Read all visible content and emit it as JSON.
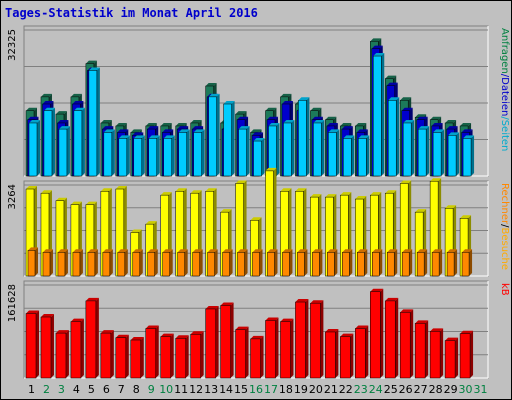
{
  "title": "Tages-Statistik im Monat April 2016",
  "chart_data": {
    "type": "bar",
    "title": "Tages-Statistik im Monat April 2016",
    "categories": [
      "1",
      "2",
      "3",
      "4",
      "5",
      "6",
      "7",
      "8",
      "9",
      "10",
      "11",
      "12",
      "13",
      "14",
      "15",
      "16",
      "17",
      "18",
      "19",
      "20",
      "21",
      "22",
      "23",
      "24",
      "25",
      "26",
      "27",
      "28",
      "29",
      "30",
      "31"
    ],
    "weekend_days": [
      "2",
      "3",
      "9",
      "10",
      "16",
      "17",
      "23",
      "24",
      "30",
      "31"
    ],
    "colors": {
      "anfragen": "#1c7a5a",
      "dateien": "#0000cc",
      "seiten": "#00ccff",
      "besuche": "#ffff00",
      "rechner": "#ff8800",
      "kb": "#ff0000",
      "weekday_label": "#000000",
      "weekend_label": "#008040"
    },
    "panels": [
      {
        "id": "top",
        "ymax_label": "32325",
        "ymax": 32325,
        "right_labels": [
          {
            "text": "Anfragen",
            "color": "#008040"
          },
          {
            "text": "Dateien",
            "color": "#0000cc"
          },
          {
            "text": "Seiten",
            "color": "#00aacc"
          }
        ],
        "series": [
          {
            "name": "Anfragen",
            "values": [
              14460,
              17520,
              13700,
              17520,
              24880,
              11740,
              11080,
              9650,
              11080,
              11080,
              11080,
              11740,
              19920,
              11740,
              13700,
              9650,
              14460,
              17520,
              15940,
              14460,
              12460,
              11080,
              11080,
              29800,
              21560,
              16760,
              13000,
              12460,
              11740,
              11080,
              null
            ]
          },
          {
            "name": "Dateien",
            "values": [
              12460,
              15940,
              11740,
              15940,
              23360,
              10390,
              9650,
              9000,
              10390,
              9650,
              10390,
              10390,
              17520,
              10390,
              12460,
              9000,
              12460,
              15940,
              14460,
              12460,
              11080,
              10390,
              9650,
              28200,
              20000,
              14460,
              12460,
              11080,
              10390,
              9650,
              null
            ]
          },
          {
            "name": "Seiten",
            "values": [
              11740,
              14460,
              10390,
              14460,
              23360,
              9650,
              8330,
              8330,
              8330,
              8330,
              9650,
              9650,
              17520,
              15940,
              10390,
              7740,
              11080,
              11740,
              16760,
              11740,
              9650,
              8330,
              8330,
              26560,
              16760,
              11740,
              10390,
              9650,
              9000,
              8330,
              null
            ]
          }
        ]
      },
      {
        "id": "middle",
        "ymax_label": "3264",
        "ymax": 3264,
        "right_labels": [
          {
            "text": "Rechner",
            "color": "#ff8800"
          },
          {
            "text": "/",
            "color": "#000000"
          },
          {
            "text": "Besuche",
            "color": "#ffaa00"
          }
        ],
        "series": [
          {
            "name": "Besuche",
            "values": [
              3120,
              2970,
              2700,
              2560,
              2560,
              3040,
              3120,
              1560,
              1860,
              2900,
              3040,
              2970,
              3040,
              2290,
              3320,
              2000,
              3770,
              3040,
              3040,
              2830,
              2830,
              2900,
              2760,
              2900,
              2970,
              3320,
              2290,
              3400,
              2430,
              2070,
              null
            ]
          },
          {
            "name": "Rechner",
            "values": [
              920,
              850,
              850,
              850,
              850,
              850,
              850,
              850,
              850,
              850,
              850,
              850,
              850,
              850,
              850,
              850,
              850,
              850,
              850,
              850,
              850,
              850,
              850,
              850,
              850,
              850,
              850,
              850,
              850,
              850,
              null
            ]
          }
        ]
      },
      {
        "id": "bottom",
        "ymax_label": "161628",
        "ymax": 161628,
        "right_labels": [
          {
            "text": "kB",
            "color": "#ff0000"
          }
        ],
        "series": [
          {
            "name": "kB",
            "values": [
              112000,
              106000,
              78000,
              98000,
              134000,
              78000,
              70000,
              66000,
              86000,
              72000,
              69000,
              76000,
              120000,
              126000,
              84000,
              68000,
              100000,
              98000,
              132000,
              130000,
              80000,
              72000,
              86000,
              150000,
              134000,
              114000,
              95000,
              81000,
              65000,
              77000,
              null
            ]
          }
        ]
      }
    ]
  }
}
